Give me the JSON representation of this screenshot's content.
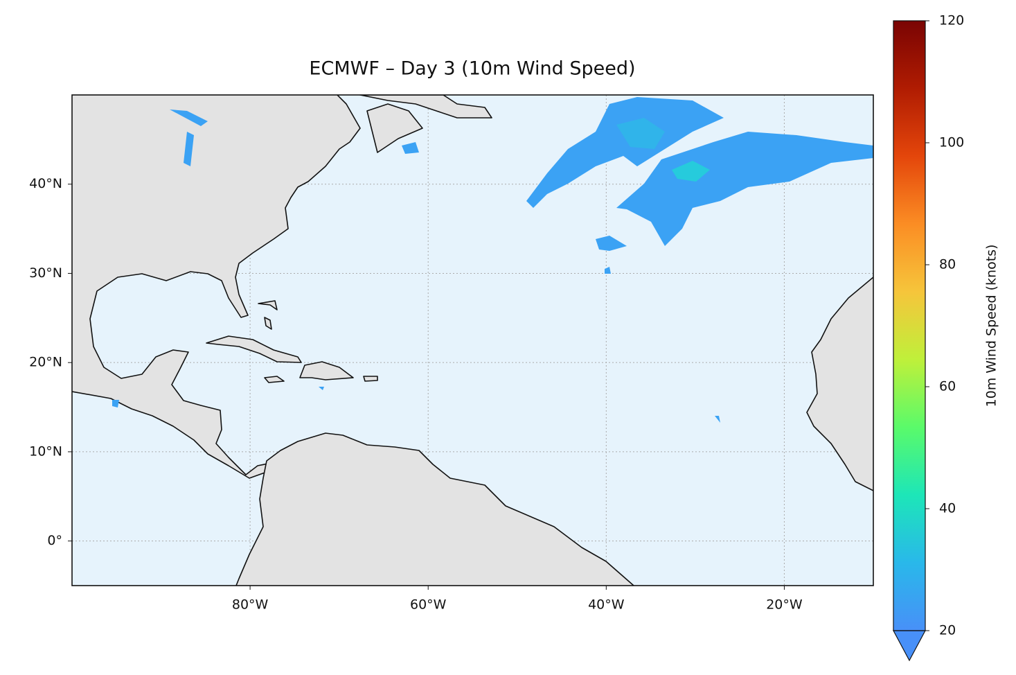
{
  "chart_data": {
    "type": "map",
    "title": "ECMWF – Day 3 (10m Wind Speed)",
    "colorbar_label": "10m Wind Speed (knots)",
    "xlim": [
      -100,
      -10
    ],
    "ylim": [
      -5,
      50
    ],
    "xticks": [
      {
        "value": -80,
        "label": "80°W"
      },
      {
        "value": -60,
        "label": "60°W"
      },
      {
        "value": -40,
        "label": "40°W"
      },
      {
        "value": -20,
        "label": "20°W"
      }
    ],
    "yticks": [
      {
        "value": 0,
        "label": "0°"
      },
      {
        "value": 10,
        "label": "10°N"
      },
      {
        "value": 20,
        "label": "20°N"
      },
      {
        "value": 30,
        "label": "30°N"
      },
      {
        "value": 40,
        "label": "40°N"
      }
    ],
    "grid": true,
    "clim": [
      20,
      120
    ],
    "cticks": [
      20,
      40,
      60,
      80,
      100,
      120
    ],
    "extend": "min",
    "colormap": [
      "#4890f8",
      "#29b8ea",
      "#1de6b8",
      "#5afa6a",
      "#bff03a",
      "#f6c53b",
      "#fb8d24",
      "#e4460b",
      "#b01c02",
      "#7a0403"
    ],
    "ocean_color": "#e6f3fc",
    "land_color": "#e3e3e3"
  }
}
